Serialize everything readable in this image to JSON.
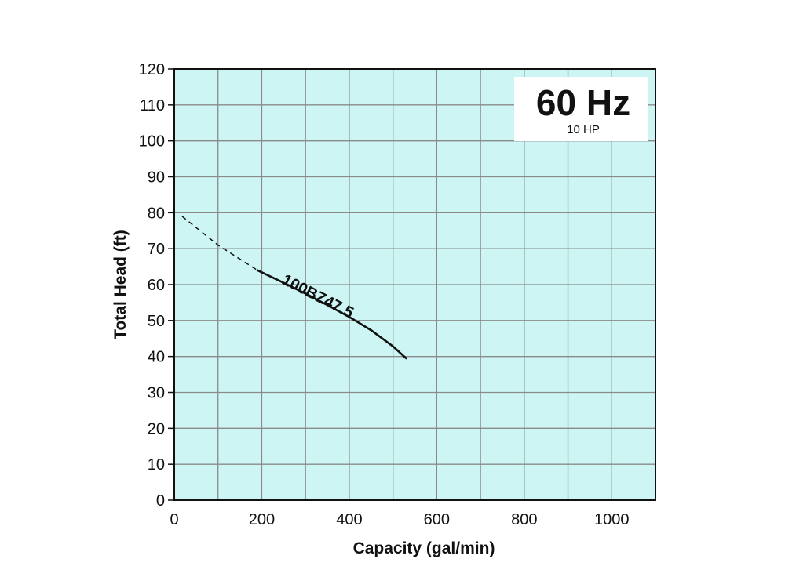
{
  "chart_data": {
    "type": "line",
    "frequency_label": "60 Hz",
    "power_label": "10 HP",
    "xlabel": "Capacity (gal/min)",
    "ylabel": "Total Head (ft)",
    "xlim": [
      0,
      1100
    ],
    "ylim": [
      0,
      120
    ],
    "xticks": [
      0,
      200,
      400,
      600,
      800,
      1000
    ],
    "yticks": [
      0,
      10,
      20,
      30,
      40,
      50,
      60,
      70,
      80,
      90,
      100,
      110,
      120
    ],
    "grid": true,
    "colors": {
      "plot_background": "#ccf5f4",
      "grid": "#8a8a8a",
      "curve": "#111111"
    },
    "series": [
      {
        "name": "100BZ47.5",
        "dashed_segment": {
          "x": [
            18,
            100,
            190
          ],
          "y": [
            79,
            71,
            64
          ]
        },
        "solid_segment": {
          "x": [
            190,
            250,
            300,
            350,
            400,
            450,
            500,
            530
          ],
          "y": [
            64,
            60.5,
            57.5,
            54.3,
            51,
            47.3,
            42.8,
            39.5
          ]
        }
      }
    ]
  }
}
